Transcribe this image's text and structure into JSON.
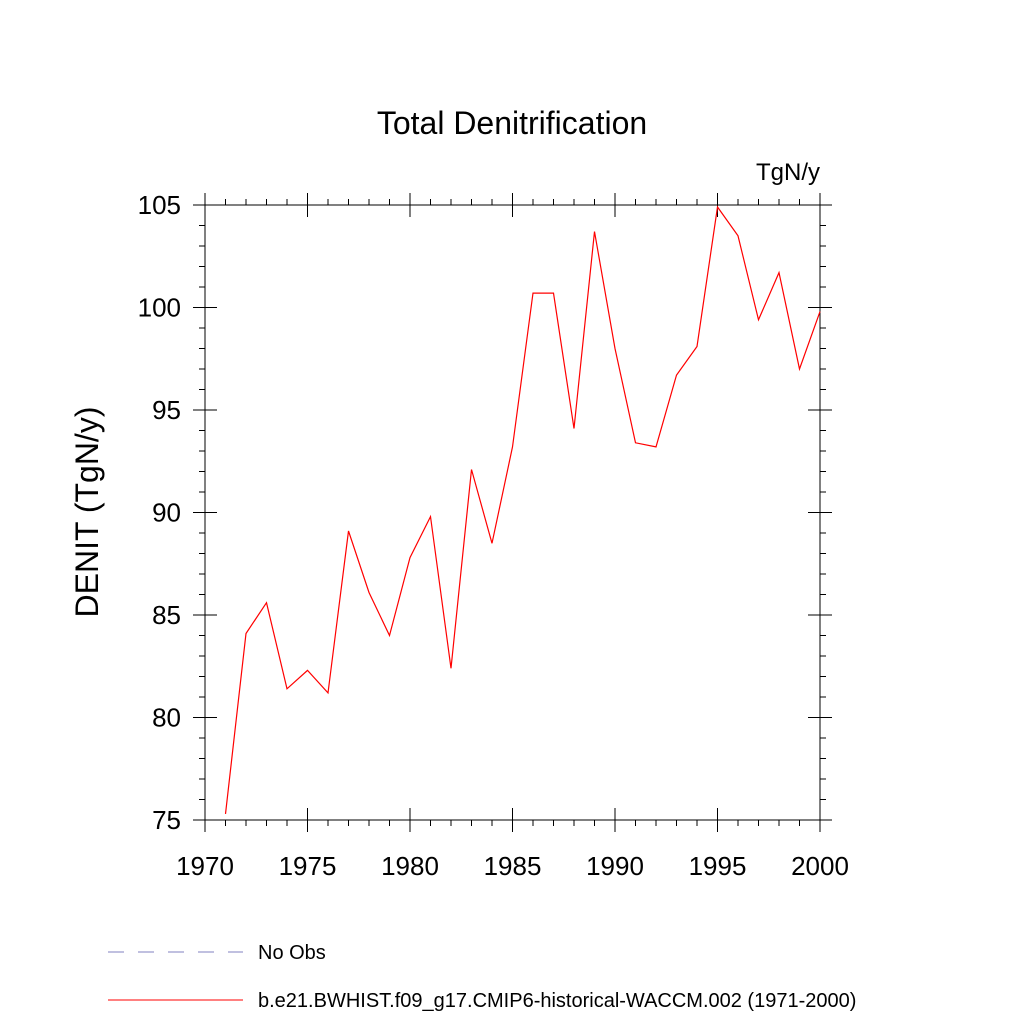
{
  "chart_data": {
    "type": "line",
    "title": "Total Denitrification",
    "units": "TgN/y",
    "xlabel": "",
    "ylabel": "DENIT  (TgN/y)",
    "xlim": [
      1970,
      2000
    ],
    "ylim": [
      75,
      105
    ],
    "xticks": [
      1970,
      1975,
      1980,
      1985,
      1990,
      1995,
      2000
    ],
    "yticks": [
      75,
      80,
      85,
      90,
      95,
      100,
      105
    ],
    "grid": false,
    "legend_position": "bottom",
    "series": [
      {
        "name": "b.e21.BWHIST.f09_g17.CMIP6-historical-WACCM.002 (1971-2000)",
        "color": "#ff0000",
        "style": "solid",
        "x": [
          1971,
          1972,
          1973,
          1974,
          1975,
          1976,
          1977,
          1978,
          1979,
          1980,
          1981,
          1982,
          1983,
          1984,
          1985,
          1986,
          1987,
          1988,
          1989,
          1990,
          1991,
          1992,
          1993,
          1994,
          1995,
          1996,
          1997,
          1998,
          1999,
          2000
        ],
        "y": [
          75.3,
          84.1,
          85.6,
          81.4,
          82.3,
          81.2,
          89.1,
          86.1,
          84.0,
          87.8,
          89.8,
          82.4,
          92.1,
          88.5,
          93.2,
          100.7,
          100.7,
          94.1,
          103.7,
          98.0,
          93.4,
          93.2,
          96.7,
          98.1,
          104.9,
          103.5,
          99.4,
          101.7,
          97.0,
          99.8
        ]
      }
    ],
    "legend": [
      {
        "label": "No Obs",
        "color": "#8080c0",
        "style": "dashed"
      },
      {
        "label": "b.e21.BWHIST.f09_g17.CMIP6-historical-WACCM.002 (1971-2000)",
        "color": "#ff0000",
        "style": "solid"
      }
    ]
  }
}
